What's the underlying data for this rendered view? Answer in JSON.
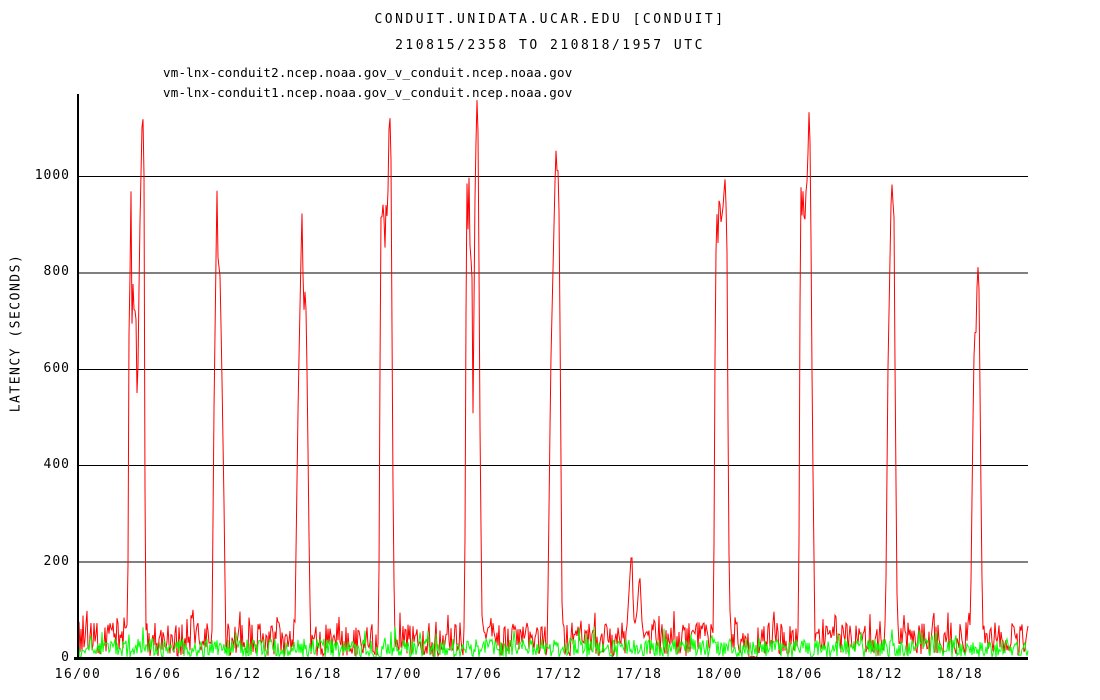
{
  "chart_data": {
    "type": "line",
    "title": "CONDUIT.UNIDATA.UCAR.EDU [CONDUIT]",
    "subtitle": "210815/2358 TO 210818/1957 UTC",
    "ylabel": "LATENCY (SECONDS)",
    "x_tick_labels": [
      "16/00",
      "16/06",
      "16/12",
      "16/18",
      "17/00",
      "17/06",
      "17/12",
      "17/18",
      "18/00",
      "18/06",
      "18/12",
      "18/18"
    ],
    "x_tick_hours": [
      0,
      6,
      12,
      18,
      24,
      30,
      36,
      42,
      48,
      54,
      60,
      66
    ],
    "x_range_hours": [
      0,
      71.1
    ],
    "ylim": [
      0,
      1170
    ],
    "y_tick_values": [
      0,
      200,
      400,
      600,
      800,
      1000
    ],
    "grid_y_values": [
      200,
      400,
      600,
      800,
      1000
    ],
    "grid": true,
    "legend_position": "top-left",
    "series": [
      {
        "name": "vm-lnx-conduit2.ncep.noaa.gov_v_conduit.ncep.noaa.gov",
        "color": "#ff0000",
        "baseline_noise_seconds": {
          "min": 4,
          "max": 74,
          "occasional_max": 100
        },
        "gaps_hours": [
          [
            50.2,
            50.85
          ]
        ],
        "spike_profiles_hour_seconds": [
          [
            [
              3.7,
              20
            ],
            [
              3.8,
              430
            ],
            [
              3.84,
              1000
            ],
            [
              3.9,
              760
            ],
            [
              3.96,
              1005
            ],
            [
              4.02,
              670
            ],
            [
              4.12,
              780
            ],
            [
              4.22,
              700
            ],
            [
              4.32,
              745
            ],
            [
              4.44,
              500
            ],
            [
              4.62,
              880
            ],
            [
              4.82,
              1140
            ],
            [
              4.93,
              1085
            ],
            [
              5.02,
              300
            ],
            [
              5.08,
              25
            ]
          ],
          [
            [
              10.02,
              30
            ],
            [
              10.18,
              520
            ],
            [
              10.4,
              975
            ],
            [
              10.5,
              790
            ],
            [
              10.6,
              830
            ],
            [
              10.74,
              640
            ],
            [
              10.94,
              300
            ],
            [
              11.06,
              30
            ]
          ],
          [
            [
              16.22,
              35
            ],
            [
              16.48,
              540
            ],
            [
              16.76,
              930
            ],
            [
              16.89,
              710
            ],
            [
              17.03,
              780
            ],
            [
              17.16,
              560
            ],
            [
              17.32,
              180
            ],
            [
              17.42,
              30
            ]
          ],
          [
            [
              22.5,
              30
            ],
            [
              22.62,
              700
            ],
            [
              22.7,
              1000
            ],
            [
              22.78,
              870
            ],
            [
              22.86,
              990
            ],
            [
              22.95,
              820
            ],
            [
              23.06,
              950
            ],
            [
              23.16,
              900
            ],
            [
              23.31,
              1155
            ],
            [
              23.42,
              1060
            ],
            [
              23.56,
              400
            ],
            [
              23.7,
              25
            ]
          ],
          [
            [
              28.93,
              40
            ],
            [
              29.05,
              780
            ],
            [
              29.12,
              1005
            ],
            [
              29.2,
              870
            ],
            [
              29.28,
              1030
            ],
            [
              29.37,
              760
            ],
            [
              29.46,
              900
            ],
            [
              29.56,
              500
            ],
            [
              29.71,
              950
            ],
            [
              29.85,
              1168
            ],
            [
              29.95,
              1080
            ],
            [
              30.1,
              420
            ],
            [
              30.26,
              30
            ]
          ],
          [
            [
              35.13,
              35
            ],
            [
              35.38,
              600
            ],
            [
              35.76,
              1060
            ],
            [
              35.87,
              1000
            ],
            [
              35.97,
              1020
            ],
            [
              36.09,
              640
            ],
            [
              36.22,
              120
            ],
            [
              36.3,
              30
            ]
          ],
          [
            [
              41.03,
              40
            ],
            [
              41.44,
              232
            ],
            [
              41.6,
              60
            ],
            [
              41.82,
              90
            ],
            [
              42.04,
              178
            ],
            [
              42.22,
              70
            ],
            [
              42.4,
              35
            ]
          ],
          [
            [
              47.56,
              35
            ],
            [
              47.7,
              750
            ],
            [
              47.8,
              940
            ],
            [
              47.9,
              860
            ],
            [
              48.0,
              980
            ],
            [
              48.1,
              900
            ],
            [
              48.26,
              930
            ],
            [
              48.42,
              995
            ],
            [
              48.56,
              900
            ],
            [
              48.7,
              250
            ],
            [
              48.84,
              30
            ]
          ],
          [
            [
              53.93,
              40
            ],
            [
              54.05,
              820
            ],
            [
              54.12,
              1000
            ],
            [
              54.2,
              900
            ],
            [
              54.28,
              990
            ],
            [
              54.37,
              870
            ],
            [
              54.46,
              960
            ],
            [
              54.6,
              1000
            ],
            [
              54.7,
              1140
            ],
            [
              54.81,
              1050
            ],
            [
              54.96,
              500
            ],
            [
              55.16,
              30
            ]
          ],
          [
            [
              60.43,
              40
            ],
            [
              60.62,
              600
            ],
            [
              60.89,
              1005
            ],
            [
              60.98,
              940
            ],
            [
              61.06,
              960
            ],
            [
              61.16,
              550
            ],
            [
              61.3,
              120
            ],
            [
              61.42,
              35
            ]
          ],
          [
            [
              66.78,
              35
            ],
            [
              66.96,
              450
            ],
            [
              67.1,
              700
            ],
            [
              67.18,
              640
            ],
            [
              67.33,
              828
            ],
            [
              67.44,
              760
            ],
            [
              67.56,
              400
            ],
            [
              67.7,
              60
            ],
            [
              67.8,
              30
            ]
          ]
        ]
      },
      {
        "name": "vm-lnx-conduit1.ncep.noaa.gov_v_conduit.ncep.noaa.gov",
        "color": "#00ff00",
        "baseline_noise_seconds": {
          "min": 1,
          "max": 40,
          "occasional_max": 65
        },
        "gaps_hours": [],
        "spike_profiles_hour_seconds": []
      }
    ]
  },
  "colors": {
    "axis": "#000000",
    "grid": "#000000",
    "background": "#ffffff",
    "text": "#000000",
    "series_conduit2": "#ff0000",
    "series_conduit1": "#00ff00"
  }
}
